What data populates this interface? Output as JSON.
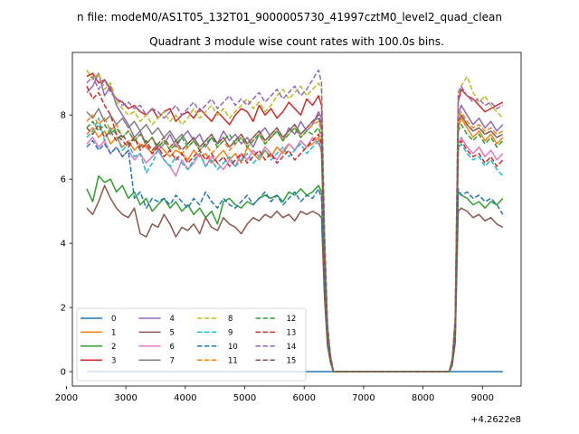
{
  "figure": {
    "suptitle": "n file: modeM0/AS1T05_132T01_9000005730_41997cztM0_level2_quad_clean"
  },
  "chart_data": {
    "type": "line",
    "title": "Quadrant 3 module wise count rates with 100.0s bins.",
    "xlabel": "",
    "ylabel": "",
    "x_offset_label": "+4.2622e8",
    "xlim": [
      2100,
      9650
    ],
    "ylim": [
      -0.45,
      9.95
    ],
    "x_ticks": [
      2000,
      3000,
      4000,
      5000,
      6000,
      7000,
      8000,
      9000
    ],
    "y_ticks": [
      0,
      2,
      4,
      6,
      8
    ],
    "x_tick_labels": [
      "2000",
      "3000",
      "4000",
      "5000",
      "6000",
      "7000",
      "8000",
      "9000"
    ],
    "y_tick_labels": [
      "0",
      "2",
      "4",
      "6",
      "8"
    ],
    "grid": false,
    "legend": {
      "position": "lower-left",
      "columns": 4
    },
    "x": [
      2342,
      2442,
      2542,
      2642,
      2742,
      2842,
      2942,
      3042,
      3142,
      3242,
      3342,
      3442,
      3542,
      3642,
      3742,
      3842,
      3942,
      4042,
      4142,
      4242,
      4342,
      4442,
      4542,
      4642,
      4742,
      4842,
      4942,
      5042,
      5142,
      5242,
      5342,
      5442,
      5542,
      5642,
      5742,
      5842,
      5942,
      6042,
      6142,
      6242,
      6292,
      6342,
      6392,
      6442,
      6492,
      6542,
      8442,
      8492,
      8542,
      8592,
      8642,
      8742,
      8842,
      8942,
      9042,
      9142,
      9242,
      9342
    ],
    "series": [
      {
        "name": "0",
        "color": "#1f77b4",
        "dash": "solid",
        "values": [
          0,
          0,
          0,
          0,
          0,
          0,
          0,
          0,
          0,
          0,
          0,
          0,
          0,
          0,
          0,
          0,
          0,
          0,
          0,
          0,
          0,
          0,
          0,
          0,
          0,
          0,
          0,
          0,
          0,
          0,
          0,
          0,
          0,
          0,
          0,
          0,
          0,
          0,
          0,
          0,
          0,
          0,
          0,
          0,
          0,
          0,
          0,
          0,
          0,
          0,
          0,
          0,
          0,
          0,
          0,
          0,
          0,
          0
        ]
      },
      {
        "name": "1",
        "color": "#ff7f0e",
        "dash": "solid",
        "values": [
          7.4,
          7.6,
          7.3,
          7.5,
          7.1,
          7.3,
          7.0,
          7.2,
          6.9,
          7.1,
          7.0,
          6.8,
          7.1,
          6.9,
          6.7,
          6.9,
          6.8,
          6.6,
          6.9,
          6.7,
          6.8,
          6.5,
          6.7,
          6.9,
          6.6,
          6.8,
          6.5,
          7.0,
          6.8,
          6.6,
          6.9,
          6.7,
          7.0,
          6.8,
          7.1,
          6.9,
          7.2,
          7.0,
          7.1,
          7.3,
          6.8,
          3.4,
          1.2,
          0.4,
          0,
          0,
          0,
          0.3,
          1.3,
          7.6,
          7.9,
          7.6,
          7.3,
          7.5,
          7.2,
          7.4,
          7.1,
          7.3
        ]
      },
      {
        "name": "2",
        "color": "#2ca02c",
        "dash": "solid",
        "values": [
          5.7,
          5.3,
          6.1,
          5.9,
          6.0,
          5.6,
          5.8,
          5.4,
          5.6,
          5.2,
          5.4,
          5.0,
          5.2,
          5.4,
          5.1,
          5.3,
          5.0,
          5.2,
          4.9,
          5.1,
          4.8,
          5.0,
          4.6,
          5.3,
          5.4,
          5.2,
          5.1,
          5.3,
          5.2,
          5.4,
          5.5,
          5.4,
          5.5,
          5.3,
          5.6,
          5.5,
          5.7,
          5.5,
          5.6,
          5.8,
          5.6,
          2.8,
          1.0,
          0.3,
          0,
          0,
          0,
          0.2,
          1.1,
          5.6,
          5.5,
          5.4,
          5.2,
          5.3,
          5.1,
          5.3,
          5.2,
          5.4
        ]
      },
      {
        "name": "3",
        "color": "#d62728",
        "dash": "solid",
        "values": [
          9.2,
          9.3,
          9.0,
          9.1,
          8.8,
          8.5,
          8.4,
          8.2,
          8.3,
          8.1,
          8.0,
          8.2,
          7.9,
          8.1,
          8.2,
          7.8,
          8.0,
          8.1,
          7.9,
          8.2,
          8.0,
          7.8,
          8.1,
          7.9,
          7.7,
          8.0,
          8.2,
          8.1,
          7.8,
          8.3,
          8.0,
          8.2,
          7.9,
          8.1,
          8.4,
          8.2,
          8.0,
          8.5,
          8.3,
          8.6,
          8.3,
          4.1,
          1.4,
          0.5,
          0,
          0,
          0,
          0.4,
          1.6,
          8.4,
          8.8,
          8.6,
          8.5,
          8.3,
          8.1,
          8.2,
          8.3,
          8.4
        ]
      },
      {
        "name": "4",
        "color": "#9467bd",
        "dash": "solid",
        "values": [
          8.7,
          8.9,
          9.3,
          8.6,
          8.9,
          8.3,
          8.0,
          7.7,
          7.3,
          7.5,
          7.1,
          7.3,
          6.9,
          7.1,
          7.4,
          7.0,
          7.3,
          7.5,
          7.2,
          7.4,
          7.0,
          7.3,
          7.1,
          7.5,
          7.2,
          7.4,
          7.1,
          7.3,
          7.0,
          7.4,
          7.6,
          7.3,
          7.5,
          7.2,
          7.6,
          7.4,
          7.8,
          7.5,
          7.7,
          8.1,
          7.9,
          3.9,
          1.3,
          0.5,
          0,
          0,
          0,
          0.3,
          1.5,
          8.0,
          8.3,
          8.0,
          7.7,
          7.9,
          7.6,
          7.8,
          7.5,
          7.7
        ]
      },
      {
        "name": "5",
        "color": "#8c564b",
        "dash": "solid",
        "values": [
          5.1,
          4.9,
          5.3,
          5.8,
          5.4,
          5.1,
          4.9,
          4.8,
          5.1,
          4.3,
          4.2,
          4.6,
          4.5,
          4.9,
          4.6,
          4.2,
          4.5,
          4.4,
          4.6,
          4.3,
          4.8,
          4.5,
          4.4,
          4.8,
          4.6,
          4.5,
          4.3,
          4.6,
          4.8,
          4.7,
          4.9,
          4.8,
          5.0,
          4.8,
          4.9,
          4.7,
          5.0,
          4.9,
          5.0,
          4.9,
          4.8,
          2.3,
          0.8,
          0.3,
          0,
          0,
          0,
          0.2,
          0.9,
          5.0,
          5.1,
          5.0,
          4.8,
          4.9,
          4.7,
          4.8,
          4.6,
          4.5
        ]
      },
      {
        "name": "6",
        "color": "#e377c2",
        "dash": "solid",
        "values": [
          7.1,
          7.3,
          7.0,
          7.2,
          6.8,
          7.0,
          6.7,
          6.9,
          6.6,
          6.8,
          6.5,
          6.7,
          6.9,
          6.6,
          6.4,
          6.1,
          6.6,
          6.3,
          6.5,
          6.8,
          6.4,
          6.7,
          6.5,
          6.3,
          6.6,
          6.4,
          6.8,
          6.6,
          6.9,
          6.7,
          7.0,
          6.8,
          6.6,
          6.9,
          7.1,
          6.9,
          7.2,
          7.0,
          7.3,
          7.1,
          6.9,
          3.4,
          1.2,
          0.4,
          0,
          0,
          0,
          0.3,
          1.3,
          7.1,
          7.3,
          7.0,
          6.8,
          7.0,
          6.7,
          6.9,
          6.6,
          6.8
        ]
      },
      {
        "name": "7",
        "color": "#7f7f7f",
        "dash": "solid",
        "values": [
          8.1,
          7.9,
          8.2,
          7.8,
          8.0,
          7.7,
          7.9,
          7.6,
          7.8,
          7.5,
          7.7,
          7.4,
          7.6,
          7.3,
          7.5,
          7.2,
          7.4,
          7.1,
          7.3,
          7.0,
          7.2,
          7.4,
          7.1,
          7.3,
          7.0,
          7.2,
          7.4,
          7.1,
          7.3,
          7.5,
          7.2,
          7.4,
          7.6,
          7.3,
          7.5,
          7.7,
          7.4,
          7.6,
          7.8,
          7.9,
          7.6,
          3.8,
          1.3,
          0.5,
          0,
          0,
          0,
          0.3,
          1.5,
          7.8,
          8.0,
          7.7,
          7.5,
          7.6,
          7.4,
          7.5,
          7.3,
          7.4
        ]
      },
      {
        "name": "8",
        "color": "#bcbd22",
        "dash": "dashed",
        "values": [
          9.4,
          9.1,
          9.3,
          8.8,
          9.0,
          8.4,
          8.2,
          8.0,
          8.1,
          7.8,
          8.0,
          7.7,
          7.9,
          8.1,
          7.8,
          8.0,
          7.7,
          7.9,
          8.2,
          7.9,
          8.1,
          8.3,
          8.0,
          8.2,
          7.9,
          8.1,
          8.3,
          8.5,
          8.2,
          8.4,
          8.1,
          8.3,
          8.6,
          8.8,
          8.5,
          8.7,
          8.9,
          8.6,
          8.8,
          9.0,
          8.8,
          4.3,
          1.5,
          0.5,
          0,
          0,
          0,
          0.4,
          1.7,
          8.6,
          8.9,
          9.2,
          8.7,
          8.4,
          8.6,
          8.3,
          8.1,
          7.9
        ]
      },
      {
        "name": "9",
        "color": "#17becf",
        "dash": "dashed",
        "values": [
          7.3,
          7.5,
          7.9,
          7.2,
          7.6,
          7.4,
          6.9,
          7.1,
          6.7,
          6.8,
          6.2,
          6.5,
          6.9,
          6.6,
          6.4,
          6.7,
          6.5,
          6.3,
          6.6,
          6.8,
          6.4,
          6.6,
          6.3,
          6.5,
          6.7,
          6.4,
          6.6,
          6.8,
          6.5,
          6.7,
          6.9,
          6.6,
          6.8,
          7.0,
          6.7,
          6.9,
          7.1,
          6.8,
          7.0,
          7.2,
          6.9,
          3.4,
          1.2,
          0.4,
          0,
          0,
          0,
          0.3,
          1.3,
          6.9,
          7.1,
          6.8,
          6.6,
          6.7,
          6.4,
          6.6,
          6.3,
          6.1
        ]
      },
      {
        "name": "10",
        "color": "#1f77b4",
        "dash": "dashed",
        "values": [
          7.0,
          7.2,
          6.9,
          7.1,
          6.8,
          7.0,
          6.7,
          6.9,
          5.4,
          5.6,
          5.1,
          5.4,
          5.3,
          5.4,
          5.2,
          5.5,
          5.3,
          5.1,
          5.4,
          5.2,
          5.6,
          5.3,
          5.1,
          5.4,
          5.2,
          5.1,
          5.3,
          5.5,
          5.2,
          5.4,
          5.6,
          5.3,
          5.5,
          5.2,
          5.4,
          5.6,
          5.3,
          5.5,
          5.4,
          5.7,
          5.4,
          2.7,
          0.9,
          0.3,
          0,
          0,
          0,
          0.2,
          1.1,
          5.7,
          5.5,
          5.6,
          5.4,
          5.5,
          5.3,
          5.4,
          5.2,
          4.9
        ]
      },
      {
        "name": "11",
        "color": "#ff7f0e",
        "dash": "dashed",
        "values": [
          7.8,
          8.0,
          7.7,
          7.9,
          7.5,
          7.7,
          7.3,
          7.5,
          7.2,
          7.4,
          7.1,
          7.3,
          7.0,
          7.2,
          6.9,
          7.1,
          6.8,
          7.0,
          7.2,
          6.9,
          7.1,
          6.8,
          7.0,
          7.2,
          6.9,
          7.1,
          7.3,
          7.0,
          7.2,
          7.4,
          7.1,
          7.3,
          7.5,
          7.2,
          7.4,
          7.6,
          7.3,
          7.5,
          7.7,
          7.8,
          7.5,
          3.7,
          1.3,
          0.4,
          0,
          0,
          0,
          0.3,
          1.4,
          7.9,
          8.1,
          7.8,
          7.6,
          7.7,
          7.5,
          7.6,
          7.4,
          7.5
        ]
      },
      {
        "name": "12",
        "color": "#2ca02c",
        "dash": "dashed",
        "values": [
          7.6,
          7.8,
          7.5,
          7.7,
          7.4,
          7.6,
          7.3,
          7.5,
          7.2,
          7.4,
          7.1,
          7.3,
          7.0,
          7.2,
          6.9,
          7.1,
          7.3,
          7.0,
          7.2,
          6.9,
          7.1,
          7.3,
          7.0,
          7.2,
          7.4,
          7.1,
          7.3,
          7.0,
          7.2,
          7.4,
          7.1,
          7.3,
          7.5,
          7.2,
          7.4,
          7.6,
          7.3,
          7.5,
          7.4,
          7.6,
          7.3,
          3.6,
          1.2,
          0.4,
          0,
          0,
          0,
          0.3,
          1.4,
          7.5,
          7.7,
          7.4,
          7.2,
          7.4,
          7.1,
          7.3,
          7.0,
          7.2
        ]
      },
      {
        "name": "13",
        "color": "#d62728",
        "dash": "dashed",
        "values": [
          8.9,
          8.5,
          8.7,
          8.3,
          8.0,
          7.4,
          7.2,
          7.0,
          7.3,
          6.9,
          7.1,
          6.8,
          7.0,
          6.7,
          6.9,
          6.6,
          6.8,
          6.5,
          6.7,
          6.9,
          6.6,
          6.8,
          6.5,
          6.7,
          6.4,
          6.6,
          6.8,
          6.5,
          6.7,
          6.9,
          6.6,
          6.8,
          6.5,
          6.7,
          6.9,
          6.6,
          6.8,
          7.0,
          7.2,
          7.4,
          7.1,
          3.5,
          1.2,
          0.4,
          0,
          0,
          0,
          0.3,
          1.3,
          7.0,
          7.2,
          6.9,
          6.7,
          6.8,
          6.5,
          6.7,
          6.4,
          6.6
        ]
      },
      {
        "name": "14",
        "color": "#9467bd",
        "dash": "dashed",
        "values": [
          9.0,
          9.2,
          8.8,
          9.1,
          8.7,
          8.5,
          8.3,
          8.4,
          8.2,
          8.3,
          8.0,
          8.2,
          8.1,
          7.9,
          8.1,
          8.3,
          8.0,
          8.2,
          8.4,
          8.1,
          8.3,
          8.5,
          8.2,
          8.4,
          8.6,
          8.3,
          8.5,
          8.3,
          8.5,
          8.7,
          8.4,
          8.6,
          8.8,
          8.5,
          8.7,
          8.9,
          8.6,
          8.8,
          9.1,
          9.4,
          9.0,
          4.4,
          1.5,
          0.5,
          0,
          0,
          0,
          0.4,
          1.7,
          8.7,
          8.9,
          8.6,
          8.4,
          8.5,
          8.3,
          8.4,
          8.2,
          8.3
        ]
      },
      {
        "name": "15",
        "color": "#8c564b",
        "dash": "dashed",
        "values": [
          7.6,
          7.4,
          7.7,
          7.3,
          7.5,
          7.2,
          7.4,
          7.1,
          7.3,
          7.0,
          7.2,
          6.9,
          7.1,
          7.3,
          7.0,
          7.2,
          6.9,
          7.1,
          7.3,
          7.0,
          7.2,
          7.4,
          7.1,
          7.3,
          7.0,
          7.2,
          7.4,
          7.1,
          7.3,
          7.5,
          7.2,
          7.4,
          7.6,
          7.3,
          7.5,
          7.7,
          7.4,
          7.6,
          7.8,
          8.0,
          7.7,
          3.8,
          1.3,
          0.5,
          0,
          0,
          0,
          0.3,
          1.5,
          7.8,
          8.0,
          7.7,
          7.5,
          7.6,
          7.4,
          7.5,
          7.3,
          7.4
        ]
      }
    ]
  }
}
